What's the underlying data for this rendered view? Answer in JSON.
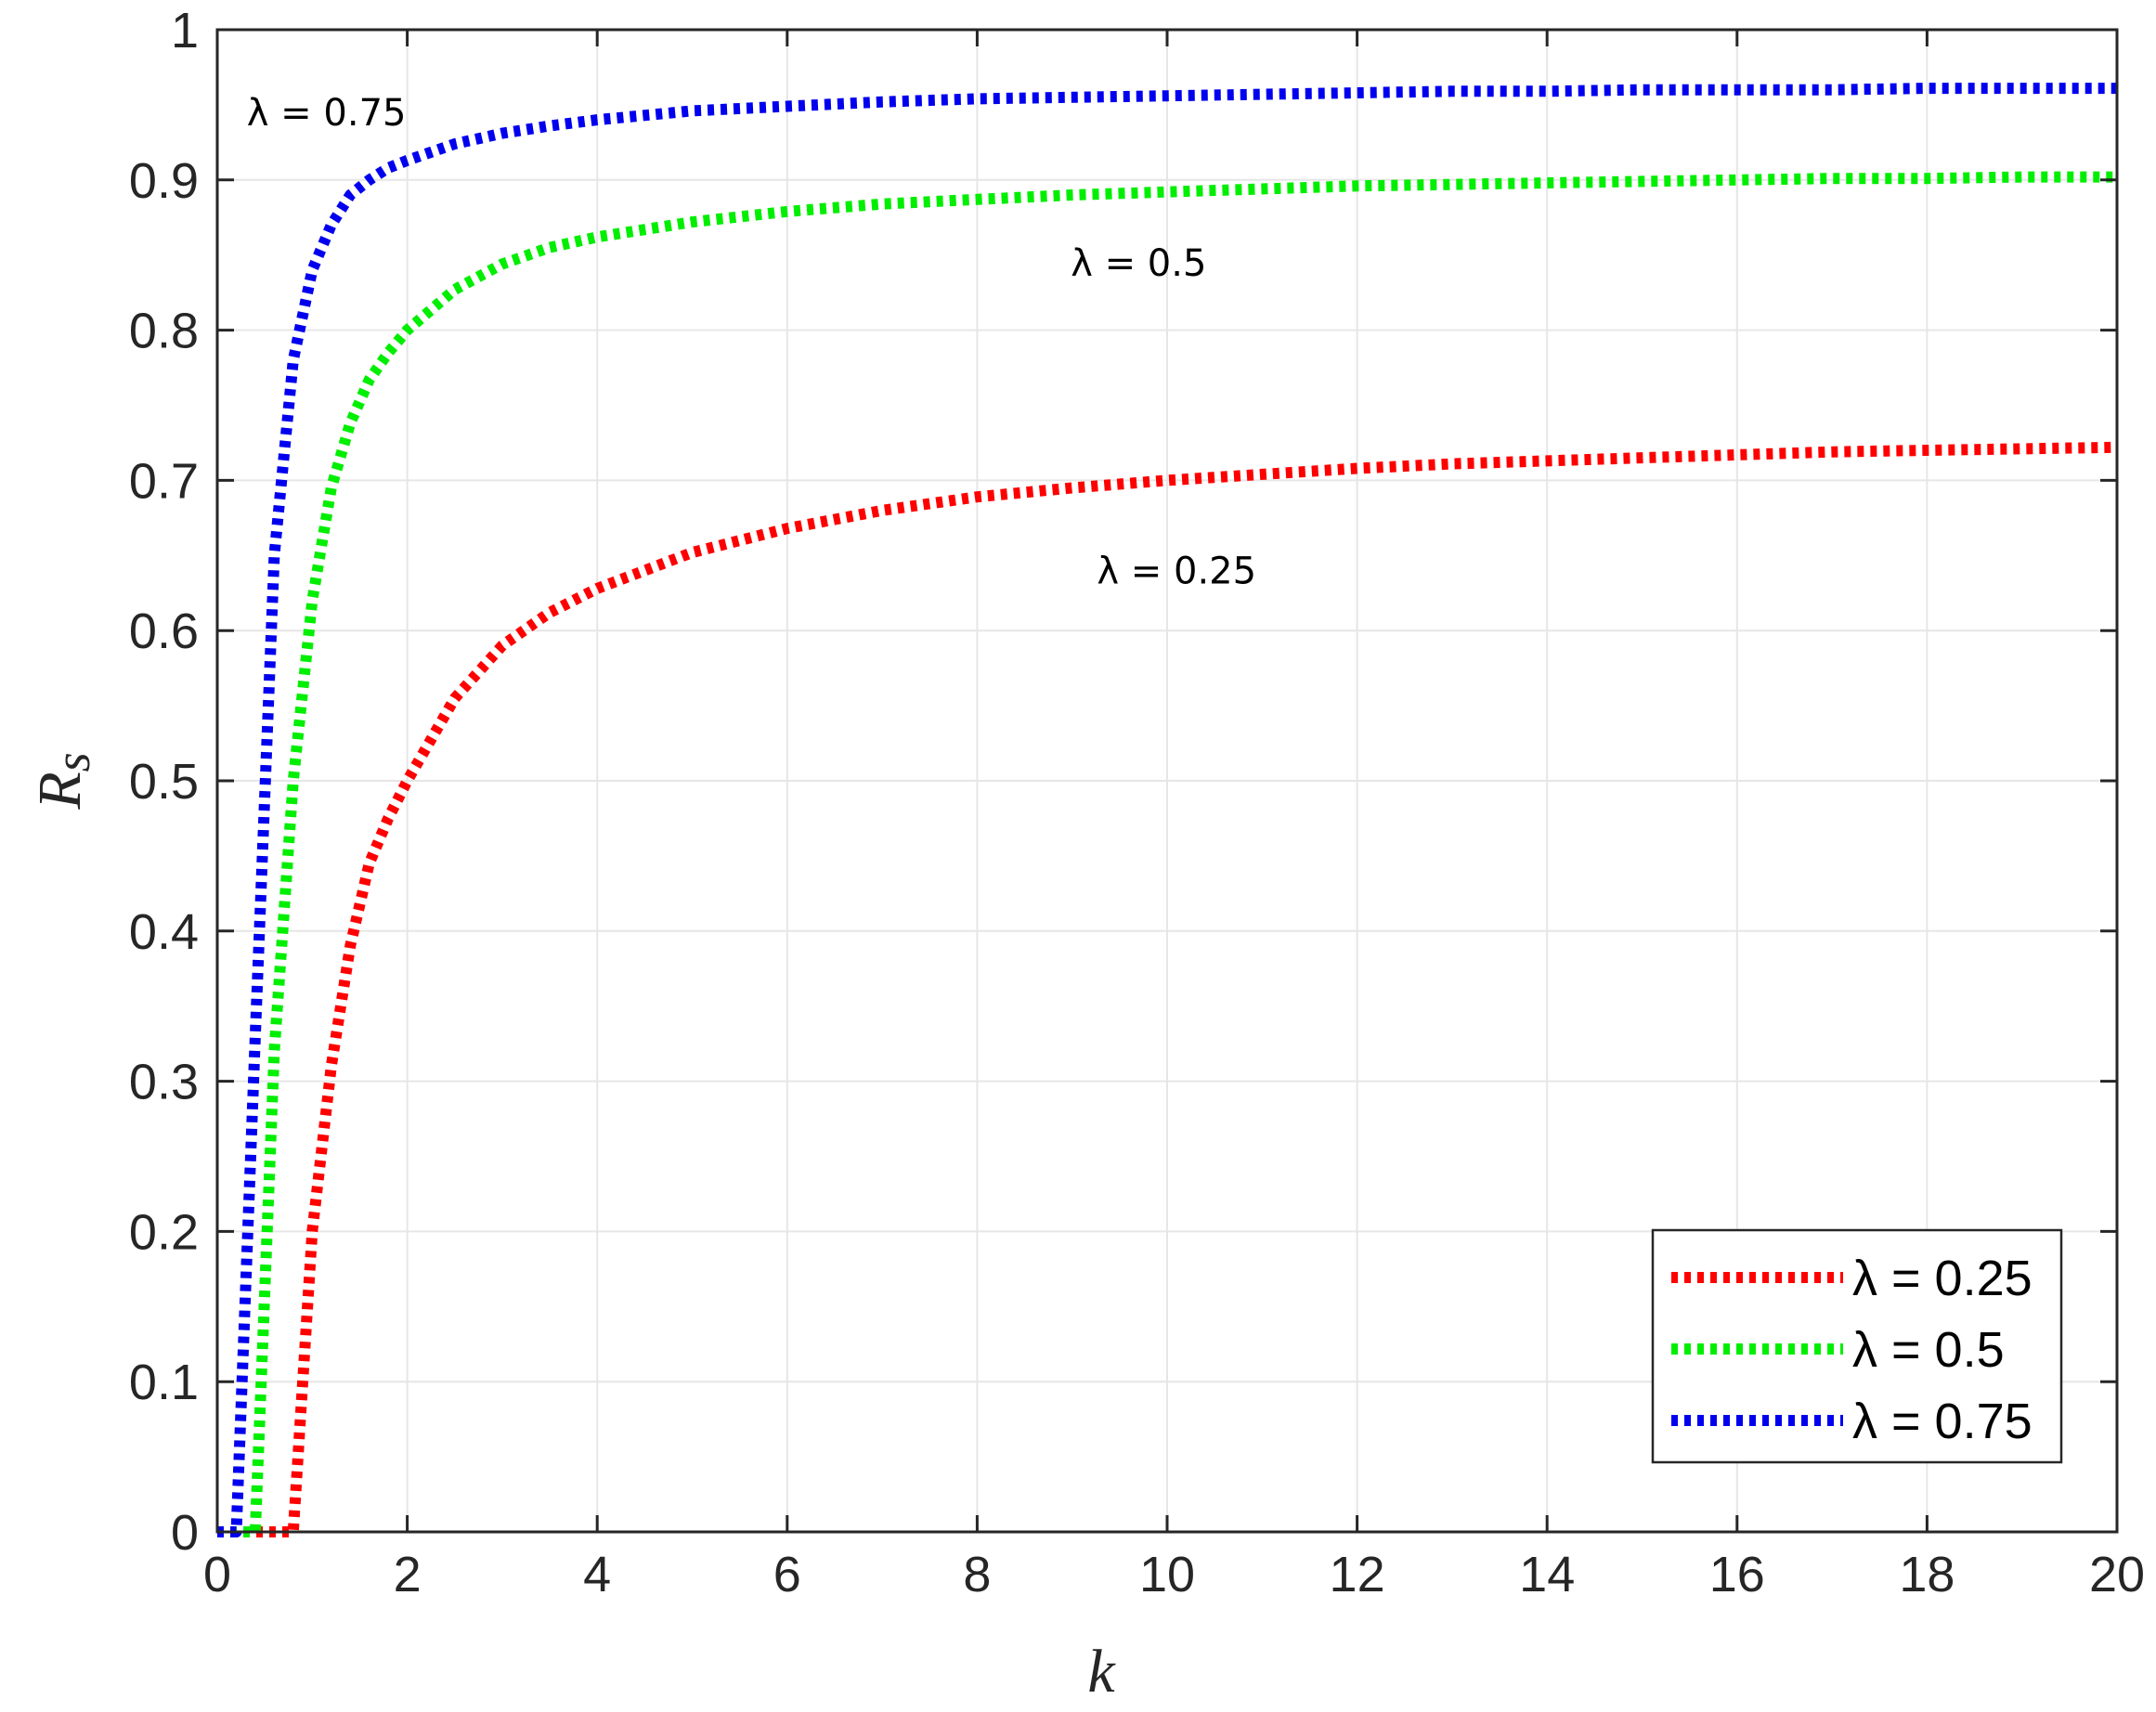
{
  "chart_data": {
    "type": "line",
    "xlabel": "k",
    "ylabel": "R",
    "ylabel_sub": "s",
    "xlim": [
      0,
      20
    ],
    "ylim": [
      0,
      1
    ],
    "xticks": [
      0,
      2,
      4,
      6,
      8,
      10,
      12,
      14,
      16,
      18,
      20
    ],
    "yticks": [
      0,
      0.1,
      0.2,
      0.3,
      0.4,
      0.5,
      0.6,
      0.7,
      0.8,
      0.9,
      1
    ],
    "grid": true,
    "legend_position": "bottom-right",
    "line_style": "dotted",
    "x": [
      0,
      0.2,
      0.4,
      0.6,
      0.8,
      1,
      1.2,
      1.4,
      1.6,
      1.8,
      2,
      2.5,
      3,
      3.5,
      4,
      5,
      6,
      7,
      8,
      9,
      10,
      11,
      12,
      13,
      14,
      15,
      16,
      17,
      18,
      19,
      20
    ],
    "series": [
      {
        "name": "λ = 0.25",
        "color": "#ff0000",
        "values": [
          0,
          0,
          0,
          0,
          0,
          0.2,
          0.31,
          0.39,
          0.445,
          0.475,
          0.5,
          0.555,
          0.59,
          0.612,
          0.628,
          0.652,
          0.668,
          0.68,
          0.689,
          0.695,
          0.7,
          0.704,
          0.708,
          0.711,
          0.713,
          0.715,
          0.717,
          0.719,
          0.72,
          0.721,
          0.722
        ]
      },
      {
        "name": "λ = 0.5",
        "color": "#00ee00",
        "values": [
          0,
          0,
          0,
          0.32,
          0.5,
          0.62,
          0.695,
          0.738,
          0.767,
          0.785,
          0.8,
          0.827,
          0.844,
          0.855,
          0.862,
          0.872,
          0.879,
          0.884,
          0.887,
          0.89,
          0.892,
          0.894,
          0.896,
          0.897,
          0.898,
          0.899,
          0.9,
          0.901,
          0.901,
          0.902,
          0.902
        ]
      },
      {
        "name": "λ = 0.75",
        "color": "#0000ee",
        "values": [
          0,
          0,
          0.33,
          0.65,
          0.78,
          0.84,
          0.87,
          0.89,
          0.9,
          0.908,
          0.913,
          0.924,
          0.931,
          0.936,
          0.94,
          0.946,
          0.949,
          0.952,
          0.954,
          0.955,
          0.956,
          0.957,
          0.958,
          0.959,
          0.959,
          0.96,
          0.96,
          0.96,
          0.961,
          0.961,
          0.961
        ]
      }
    ],
    "annotations": [
      {
        "text": "λ = 0.75",
        "x": 1.15,
        "y": 0.945
      },
      {
        "text": "λ = 0.5",
        "x": 9.7,
        "y": 0.845
      },
      {
        "text": "λ = 0.25",
        "x": 10.1,
        "y": 0.64
      }
    ]
  }
}
